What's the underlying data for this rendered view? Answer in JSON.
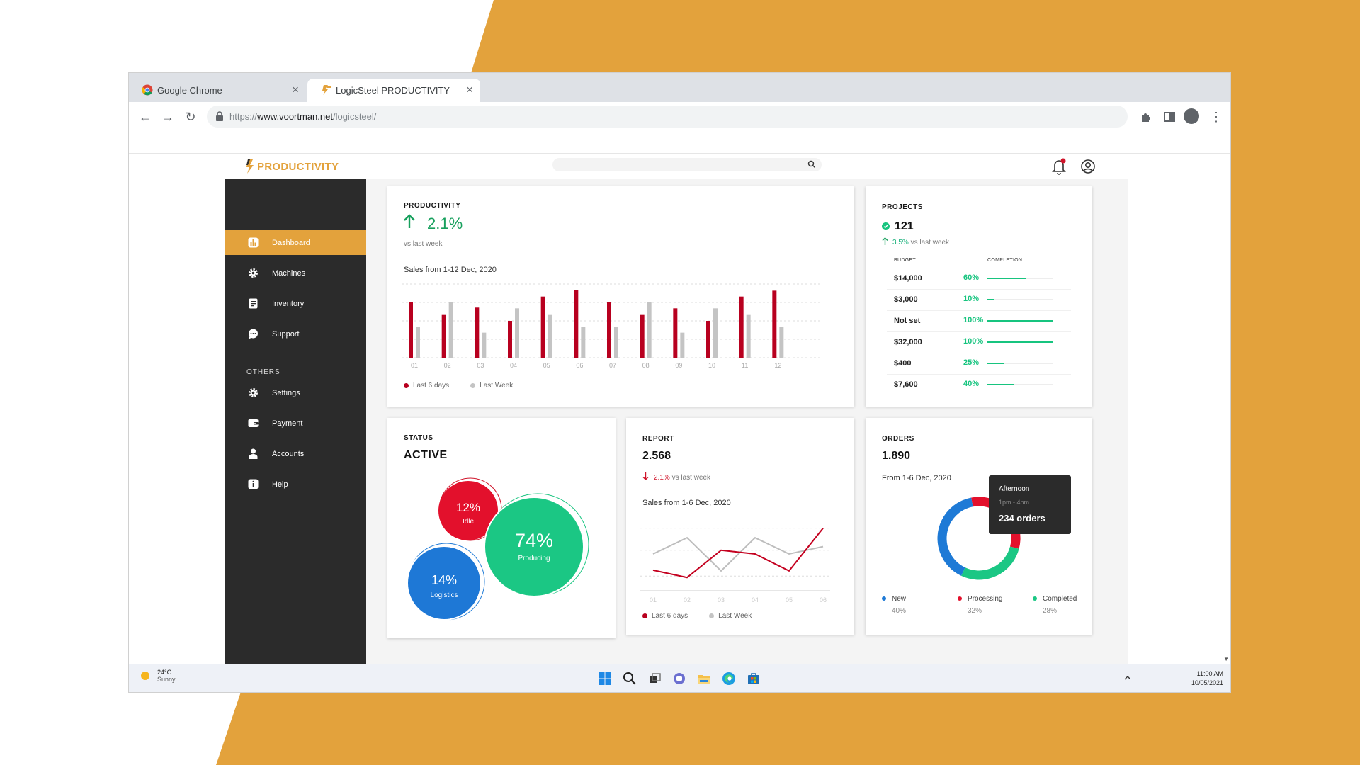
{
  "colors": {
    "accent_orange": "#e3a23c",
    "sidebar_dark": "#2b2b2b",
    "green": "#17c47f",
    "red": "#d0142a",
    "gray_series": "#c4c4c4",
    "blue": "#1e7ad6"
  },
  "browser": {
    "tabs": [
      {
        "title": "Google Chrome",
        "icon": "chrome-icon"
      },
      {
        "title": "LogicSteel PRODUCTIVITY",
        "icon": "logicsteel-icon"
      }
    ],
    "url": {
      "prefix": "https://",
      "host": "www.voortman.net",
      "path": "/logicsteel/"
    }
  },
  "app": {
    "logo_text": "PRODUCTIVITY"
  },
  "sidebar": {
    "items": [
      {
        "label": "Dashboard",
        "icon": "chart-icon",
        "active": true
      },
      {
        "label": "Machines",
        "icon": "gear-icon"
      },
      {
        "label": "Inventory",
        "icon": "document-icon"
      },
      {
        "label": "Support",
        "icon": "chat-icon"
      }
    ],
    "others_heading": "OTHERS",
    "others": [
      {
        "label": "Settings",
        "icon": "gear-icon"
      },
      {
        "label": "Payment",
        "icon": "wallet-icon"
      },
      {
        "label": "Accounts",
        "icon": "user-icon"
      },
      {
        "label": "Help",
        "icon": "info-icon"
      }
    ]
  },
  "productivity": {
    "label": "PRODUCTIVITY",
    "value": "2.1%",
    "sub": "vs last week",
    "chart_title": "Sales from 1-12 Dec, 2020",
    "legend": [
      "Last 6 days",
      "Last Week"
    ]
  },
  "projects": {
    "label": "PROJECTS",
    "count": "121",
    "change": "3.5%",
    "change_suffix": " vs last week",
    "col_budget": "BUDGET",
    "col_completion": "COMPLETION",
    "rows": [
      {
        "budget": "$14,000",
        "pct": "60%",
        "value": 60
      },
      {
        "budget": "$3,000",
        "pct": "10%",
        "value": 10
      },
      {
        "budget": "Not set",
        "pct": "100%",
        "value": 100
      },
      {
        "budget": "$32,000",
        "pct": "100%",
        "value": 100
      },
      {
        "budget": "$400",
        "pct": "25%",
        "value": 25
      },
      {
        "budget": "$7,600",
        "pct": "40%",
        "value": 40
      }
    ]
  },
  "status": {
    "label": "STATUS",
    "value": "ACTIVE",
    "bubbles": [
      {
        "pct": "12%",
        "name": "Idle"
      },
      {
        "pct": "74%",
        "name": "Producing"
      },
      {
        "pct": "14%",
        "name": "Logistics"
      }
    ]
  },
  "report": {
    "label": "REPORT",
    "value": "2.568",
    "change": "2.1%",
    "change_suffix": " vs last week",
    "chart_title": "Sales from 1-6 Dec, 2020",
    "legend": [
      "Last 6 days",
      "Last Week"
    ]
  },
  "orders": {
    "label": "ORDERS",
    "value": "1.890",
    "sub": "From 1-6 Dec, 2020",
    "tooltip": {
      "title": "Afternoon",
      "time": "1pm - 4pm",
      "count": "234 orders"
    },
    "legend": [
      {
        "name": "New",
        "pct": "40%"
      },
      {
        "name": "Processing",
        "pct": "32%"
      },
      {
        "name": "Completed",
        "pct": "28%"
      }
    ]
  },
  "taskbar": {
    "temp": "24°C",
    "condition": "Sunny",
    "time": "11:00 AM",
    "date": "10/05/2021"
  },
  "chart_data": [
    {
      "type": "bar",
      "title": "Sales from 1-12 Dec, 2020",
      "categories": [
        "01",
        "02",
        "03",
        "04",
        "05",
        "06",
        "07",
        "08",
        "09",
        "10",
        "11",
        "12"
      ],
      "series": [
        {
          "name": "Last 6 days",
          "values": [
            75,
            58,
            68,
            50,
            83,
            92,
            75,
            58,
            67,
            50,
            83,
            91
          ]
        },
        {
          "name": "Last Week",
          "values": [
            42,
            75,
            34,
            67,
            58,
            42,
            42,
            75,
            34,
            67,
            58,
            42
          ]
        }
      ],
      "ylim": [
        0,
        100
      ],
      "legend": "bottom-left",
      "grid": true
    },
    {
      "type": "line",
      "title": "Sales from 1-6 Dec, 2020",
      "categories": [
        "01",
        "02",
        "03",
        "04",
        "05",
        "06"
      ],
      "series": [
        {
          "name": "Last 6 days",
          "values": [
            28,
            18,
            55,
            50,
            27,
            85
          ]
        },
        {
          "name": "Last Week",
          "values": [
            50,
            72,
            27,
            72,
            50,
            60
          ]
        }
      ],
      "ylim": [
        0,
        100
      ],
      "legend": "bottom-left",
      "grid": true
    },
    {
      "type": "pie",
      "title": "",
      "categories": [
        "New",
        "Processing",
        "Completed"
      ],
      "values": [
        40,
        32,
        28
      ],
      "legend": "bottom"
    }
  ]
}
